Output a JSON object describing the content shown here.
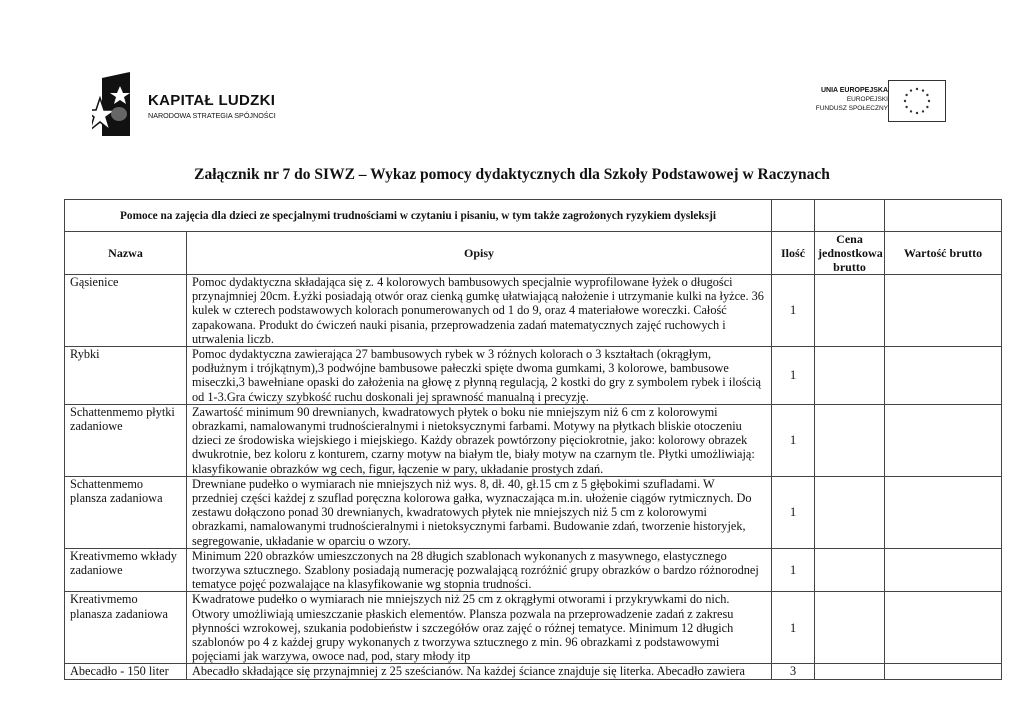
{
  "logos": {
    "left": {
      "title": "KAPITAŁ LUDZKI",
      "subtitle": "NARODOWA STRATEGIA SPÓJNOŚCI"
    },
    "right": {
      "line1": "UNIA EUROPEJSKA",
      "line2": "EUROPEJSKI",
      "line3": "FUNDUSZ SPOŁECZNY"
    }
  },
  "title": "Załącznik nr 7 do SIWZ – Wykaz pomocy dydaktycznych dla Szkoły Podstawowej w Raczynach",
  "table": {
    "section": "Pomoce na zajęcia dla dzieci ze specjalnymi trudnościami w czytaniu i pisaniu, w tym także zagrożonych ryzykiem dysleksji",
    "headers": [
      "Nazwa",
      "Opisy",
      "Ilość",
      "Cena jednostkowa brutto",
      "Wartość brutto"
    ],
    "rows": [
      {
        "name": "Gąsienice",
        "qty": "1",
        "desc": [
          "Pomoc dydaktyczna składająca się z. 4 kolorowych bambusowych specjalnie wyprofilowane łyżek o długości",
          "przynajmniej 20cm. Łyżki posiadają otwór oraz cienką gumkę ułatwiającą nałożenie i utrzymanie kulki na łyżce. 36",
          "kulek w czterech podstawowych kolorach ponumerowanych od 1 do 9, oraz 4  materiałowe woreczki. Całość",
          "zapakowana. Produkt do ćwiczeń nauki pisania, przeprowadzenia zadań matematycznych zajęć ruchowych i",
          "utrwalenia liczb."
        ]
      },
      {
        "name": "Rybki",
        "qty": "1",
        "desc": [
          "Pomoc dydaktyczna  zawierająca 27 bambusowych rybek w 3 różnych kolorach o 3 kształtach (okrągłym,",
          "podłużnym i trójkątnym),3 podwójne bambusowe pałeczki spięte dwoma gumkami, 3 kolorowe, bambusowe",
          "miseczki,3 bawełniane opaski do założenia na głowę z płynną regulacją, 2 kostki do gry z symbolem rybek i ilością",
          "od 1-3.Gra  ćwiczy szybkość ruchu doskonali jej sprawność manualną i precyzję."
        ]
      },
      {
        "name": "Schattenmemo płytki zadaniowe",
        "qty": "1",
        "desc": [
          "Zawartość minimum 90 drewnianych, kwadratowych płytek o boku  nie mniejszym  niż 6 cm z kolorowymi",
          "obrazkami, namalowanymi trudnościeralnymi i nietoksycznymi farbami. Motywy na płytkach bliskie  otoczeniu",
          "dzieci ze środowiska wiejskiego i miejskiego. Każdy obrazek powtórzony pięciokrotnie,  jako: kolorowy obrazek",
          "dwukrotnie, bez koloru z konturem, czarny motyw na białym tle, biały motyw  na czarnym tle. Płytki umożliwiają:",
          "klasyfikowanie obrazków wg cech, figur, łączenie w pary, układanie prostych zdań."
        ]
      },
      {
        "name": "Schattenmemo plansza zadaniowa",
        "qty": "1",
        "desc": [
          "Drewniane pudełko o wymiarach nie mniejszych niż wys. 8, dł. 40, gł.15 cm  z 5 głębokimi szufladami. W",
          "przedniej części każdej z szuflad poręczna kolorowa gałka, wyznaczająca  m.in. ułożenie ciągów rytmicznych. Do",
          "zestawu dołączono ponad 30 drewnianych, kwadratowych  płytek nie mniejszych niż 5 cm z kolorowymi",
          "obrazkami, namalowanymi trudnościeralnymi i  nietoksycznymi farbami. Budowanie zdań, tworzenie historyjek,",
          "segregowanie, układanie w oparciu  o wzory."
        ]
      },
      {
        "name": "Kreativmemo wkłady zadaniowe",
        "qty": "1",
        "desc": [
          "Minimum 220 obrazków umieszczonych na 28 długich szablonach wykonanych z  masywnego, elastycznego",
          "tworzywa sztucznego. Szablony posiadają numerację pozwalającą  rozróżnić grupy obrazków o bardzo różnorodnej",
          "tematyce pojęć pozwalające na klasyfikowanie wg stopnia trudności."
        ]
      },
      {
        "name": "Kreativmemo planasza zadaniowa",
        "qty": "1",
        "desc": [
          "Kwadratowe pudełko o wymiarach nie mniejszych niż 25 cm z okrągłymi otworami i przykrywkami do nich.",
          "Otwory umożliwiają umieszczanie płaskich elementów. Plansza pozwala na przeprowadzenie zadań z zakresu",
          "płynności wzrokowej, szukania podobieństw i szczegółów oraz zajęć o różnej tematyce. Minimum 12 długich",
          "szablonów po 4 z każdej grupy wykonanych z tworzywa sztucznego z min. 96 obrazkami z podstawowymi",
          "pojęciami jak warzywa, owoce nad, pod, stary młody itp"
        ]
      },
      {
        "name": "Abecadło - 150 liter",
        "qty": "3",
        "desc": [
          "Abecadło składające się przynajmniej z 25 sześcianów. Na każdej ściance znajduje  się literka. Abecadło zawiera"
        ]
      }
    ]
  }
}
